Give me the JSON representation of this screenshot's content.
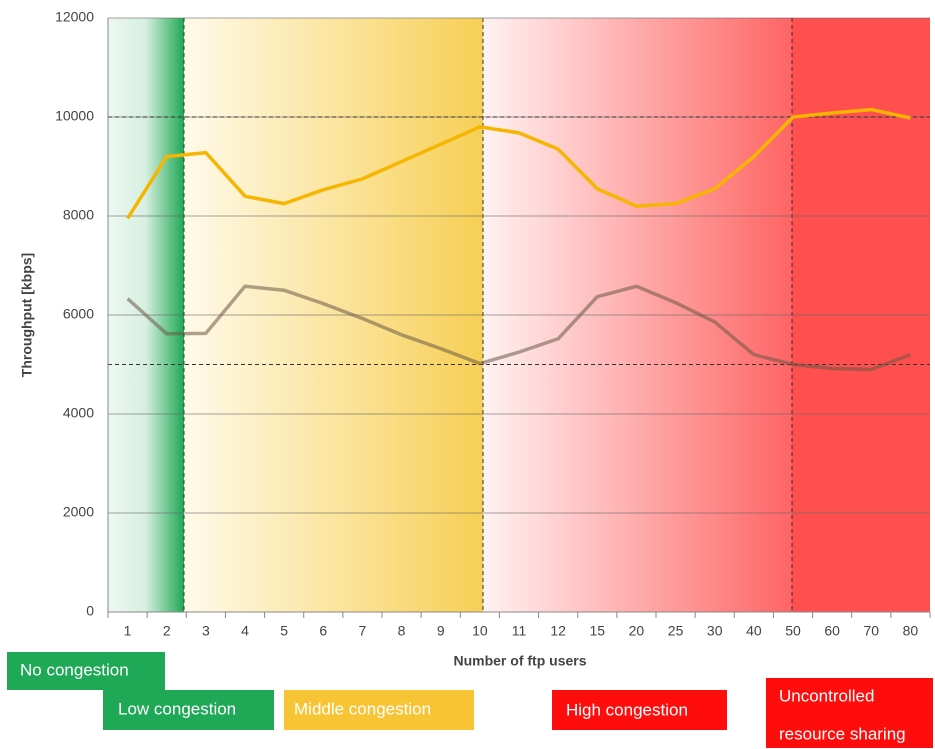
{
  "chart_data": {
    "type": "line",
    "x_label": "Number of ftp users",
    "y_label": "Throughput [kbps]",
    "categories": [
      "1",
      "2",
      "3",
      "4",
      "5",
      "6",
      "7",
      "8",
      "9",
      "10",
      "11",
      "12",
      "15",
      "20",
      "25",
      "30",
      "40",
      "50",
      "60",
      "70",
      "80"
    ],
    "series": [
      {
        "color": "#f5b500",
        "values": [
          7950,
          9200,
          9280,
          8400,
          8250,
          8530,
          8750,
          9100,
          9450,
          9800,
          9680,
          9350,
          8550,
          8200,
          8250,
          8550,
          9200,
          10000,
          10080,
          10150,
          9980
        ]
      },
      {
        "color": "rgba(105,90,70,0.55)",
        "values": [
          6330,
          5620,
          5630,
          6580,
          6500,
          6230,
          5930,
          5600,
          5320,
          5020,
          5250,
          5520,
          6370,
          6580,
          6250,
          5860,
          5200,
          5000,
          4920,
          4900,
          5200
        ]
      }
    ],
    "ylim": [
      0,
      12000
    ],
    "yticks": [
      0,
      2000,
      4000,
      6000,
      8000,
      10000,
      12000
    ],
    "grid": true,
    "reference_lines": [
      10000,
      5000
    ],
    "zone_labels": [
      "No congestion",
      "Low congestion",
      "Middle congestion",
      "High congestion",
      "Uncontrolled",
      "resource sharing"
    ]
  }
}
